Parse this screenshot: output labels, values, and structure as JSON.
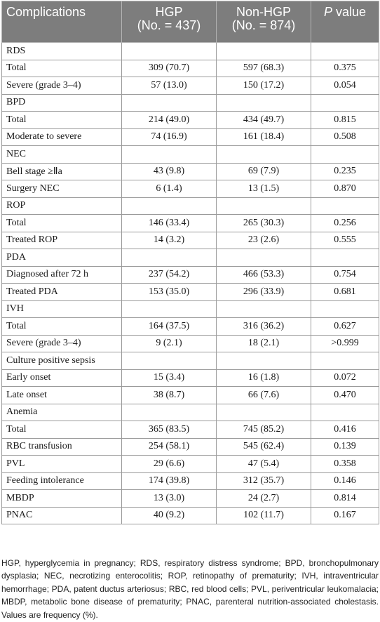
{
  "table": {
    "headers": {
      "complications": "Complications",
      "hgp": "HGP",
      "hgp_n": "(No. = 437)",
      "nonhgp": "Non-HGP",
      "nonhgp_n": "(No. = 874)",
      "p_symbol": "P",
      "p_rest": " value"
    },
    "rows": [
      {
        "label": "RDS",
        "hgp": "",
        "nonhgp": "",
        "p": ""
      },
      {
        "label": "Total",
        "hgp": "309 (70.7)",
        "nonhgp": "597 (68.3)",
        "p": "0.375"
      },
      {
        "label": "Severe (grade 3–4)",
        "hgp": "57 (13.0)",
        "nonhgp": "150 (17.2)",
        "p": "0.054"
      },
      {
        "label": "BPD",
        "hgp": "",
        "nonhgp": "",
        "p": ""
      },
      {
        "label": "Total",
        "hgp": "214 (49.0)",
        "nonhgp": "434 (49.7)",
        "p": "0.815"
      },
      {
        "label": "Moderate to severe",
        "hgp": "74 (16.9)",
        "nonhgp": "161 (18.4)",
        "p": "0.508"
      },
      {
        "label": "NEC",
        "hgp": "",
        "nonhgp": "",
        "p": ""
      },
      {
        "label": "Bell stage ≥Ⅱa",
        "hgp": "43 (9.8)",
        "nonhgp": "69 (7.9)",
        "p": "0.235"
      },
      {
        "label": "Surgery NEC",
        "hgp": "6 (1.4)",
        "nonhgp": "13 (1.5)",
        "p": "0.870"
      },
      {
        "label": "ROP",
        "hgp": "",
        "nonhgp": "",
        "p": ""
      },
      {
        "label": "Total",
        "hgp": "146 (33.4)",
        "nonhgp": "265 (30.3)",
        "p": "0.256"
      },
      {
        "label": "Treated ROP",
        "hgp": "14 (3.2)",
        "nonhgp": "23 (2.6)",
        "p": "0.555"
      },
      {
        "label": "PDA",
        "hgp": "",
        "nonhgp": "",
        "p": ""
      },
      {
        "label": "Diagnosed after 72 h",
        "hgp": "237 (54.2)",
        "nonhgp": "466 (53.3)",
        "p": "0.754"
      },
      {
        "label": "Treated PDA",
        "hgp": "153 (35.0)",
        "nonhgp": "296 (33.9)",
        "p": "0.681"
      },
      {
        "label": "IVH",
        "hgp": "",
        "nonhgp": "",
        "p": ""
      },
      {
        "label": "Total",
        "hgp": "164 (37.5)",
        "nonhgp": "316 (36.2)",
        "p": "0.627"
      },
      {
        "label": "Severe (grade 3–4)",
        "hgp": "9 (2.1)",
        "nonhgp": "18 (2.1)",
        "p": ">0.999"
      },
      {
        "label": "Culture positive sepsis",
        "hgp": "",
        "nonhgp": "",
        "p": ""
      },
      {
        "label": "Early onset",
        "hgp": "15 (3.4)",
        "nonhgp": "16 (1.8)",
        "p": "0.072"
      },
      {
        "label": "Late onset",
        "hgp": "38 (8.7)",
        "nonhgp": "66 (7.6)",
        "p": "0.470"
      },
      {
        "label": "Anemia",
        "hgp": "",
        "nonhgp": "",
        "p": ""
      },
      {
        "label": "Total",
        "hgp": "365 (83.5)",
        "nonhgp": "745 (85.2)",
        "p": "0.416"
      },
      {
        "label": "RBC transfusion",
        "hgp": "254 (58.1)",
        "nonhgp": "545 (62.4)",
        "p": "0.139"
      },
      {
        "label": "PVL",
        "hgp": "29 (6.6)",
        "nonhgp": "47 (5.4)",
        "p": "0.358"
      },
      {
        "label": "Feeding intolerance",
        "hgp": "174 (39.8)",
        "nonhgp": "312 (35.7)",
        "p": "0.146"
      },
      {
        "label": "MBDP",
        "hgp": "13 (3.0)",
        "nonhgp": "24 (2.7)",
        "p": "0.814"
      },
      {
        "label": "PNAC",
        "hgp": "40 (9.2)",
        "nonhgp": "102 (11.7)",
        "p": "0.167"
      }
    ]
  },
  "footnote": "HGP, hyperglycemia in pregnancy; RDS, respiratory distress syndrome; BPD, bronchopulmonary dysplasia; NEC, necrotizing enterocolitis; ROP, retinopathy of prematurity; IVH, intraventricular hemorrhage; PDA, patent ductus arteriosus; RBC, red blood cells; PVL, periventricular leukomalacia; MBDP, metabolic bone disease of prematurity; PNAC, parenteral nutrition-associated cholestasis. Values are frequency (%)."
}
